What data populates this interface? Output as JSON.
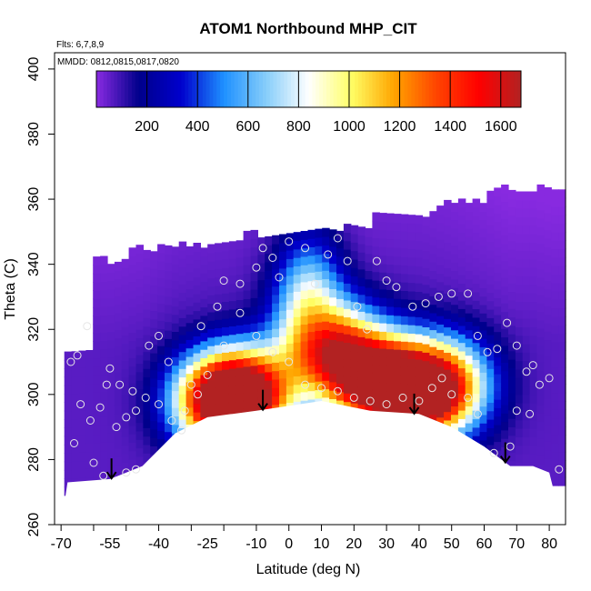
{
  "chart_data": {
    "type": "heatmap",
    "title": "ATOM1 Northbound MHP_CIT",
    "flights_note": "Flts: 6,7,8,9",
    "dates_note": "MMDD: 0812,0815,0817,0820",
    "xlabel": "Latitude (deg N)",
    "ylabel": "Theta (C)",
    "xlim": [
      -72,
      85
    ],
    "ylim": [
      260,
      405
    ],
    "x_ticks": [
      -70,
      -60,
      -50,
      -40,
      -30,
      -20,
      -10,
      0,
      10,
      20,
      30,
      40,
      50,
      60,
      70,
      80
    ],
    "x_tick_labels": [
      "-70",
      "-55",
      "-40",
      "-25",
      "-10",
      "0",
      "10",
      "20",
      "30",
      "40",
      "50",
      "60",
      "70",
      "80"
    ],
    "x_tick_label_values": [
      -70,
      -55,
      -40,
      -25,
      -10,
      0,
      10,
      20,
      30,
      40,
      50,
      60,
      70,
      80
    ],
    "y_ticks": [
      260,
      280,
      300,
      320,
      340,
      360,
      380,
      400
    ],
    "y_tick_labels": [
      "260",
      "280",
      "300",
      "320",
      "340",
      "360",
      "380",
      "400"
    ],
    "colorbar": {
      "range": [
        0,
        1680
      ],
      "ticks": [
        200,
        400,
        600,
        800,
        1000,
        1200,
        1400,
        1600
      ],
      "tick_labels": [
        "200",
        "400",
        "600",
        "800",
        "1000",
        "1200",
        "1400",
        "1600"
      ],
      "colors": [
        "#8a2be2",
        "#00008b",
        "#0000cd",
        "#1e90ff",
        "#87cefa",
        "#ffffff",
        "#ffff66",
        "#ffa500",
        "#ff4500",
        "#ff0000",
        "#b22222"
      ]
    },
    "surface_boundary": [
      [
        -68,
        273
      ],
      [
        -55,
        274
      ],
      [
        -45,
        278
      ],
      [
        -35,
        288
      ],
      [
        -25,
        293
      ],
      [
        -10,
        295
      ],
      [
        10,
        298
      ],
      [
        25,
        295
      ],
      [
        40,
        294
      ],
      [
        50,
        290
      ],
      [
        60,
        284
      ],
      [
        68,
        278
      ],
      [
        75,
        278
      ],
      [
        80,
        276
      ]
    ],
    "arrows_latitude": [
      -54.5,
      -8,
      38.5,
      66.5
    ],
    "observation_points": [
      [
        -67,
        310
      ],
      [
        -65,
        312
      ],
      [
        -62,
        321
      ],
      [
        -55,
        308
      ],
      [
        -56,
        303
      ],
      [
        -53,
        290
      ],
      [
        -50,
        293
      ],
      [
        -47,
        295
      ],
      [
        -50,
        276
      ],
      [
        -47,
        277
      ],
      [
        -43,
        315
      ],
      [
        -40,
        318
      ],
      [
        -37,
        310
      ],
      [
        -33,
        289
      ],
      [
        -30,
        303
      ],
      [
        -27,
        321
      ],
      [
        -22,
        327
      ],
      [
        -20,
        335
      ],
      [
        -15,
        334
      ],
      [
        -10,
        339
      ],
      [
        -8,
        345
      ],
      [
        -5,
        342
      ],
      [
        -3,
        336
      ],
      [
        0,
        347
      ],
      [
        5,
        345
      ],
      [
        8,
        334
      ],
      [
        12,
        343
      ],
      [
        15,
        348
      ],
      [
        18,
        341
      ],
      [
        21,
        327
      ],
      [
        24,
        320
      ],
      [
        27,
        341
      ],
      [
        30,
        335
      ],
      [
        33,
        333
      ],
      [
        38,
        327
      ],
      [
        42,
        328
      ],
      [
        46,
        330
      ],
      [
        50,
        331
      ],
      [
        55,
        331
      ],
      [
        58,
        318
      ],
      [
        61,
        313
      ],
      [
        64,
        314
      ],
      [
        67,
        322
      ],
      [
        70,
        315
      ],
      [
        73,
        307
      ],
      [
        75,
        309
      ],
      [
        77,
        303
      ],
      [
        80,
        305
      ],
      [
        83,
        277
      ],
      [
        74,
        294
      ],
      [
        70,
        295
      ],
      [
        68,
        284
      ],
      [
        63,
        282
      ],
      [
        58,
        294
      ],
      [
        55,
        299
      ],
      [
        50,
        300
      ],
      [
        47,
        305
      ],
      [
        44,
        302
      ],
      [
        40,
        298
      ],
      [
        35,
        299
      ],
      [
        30,
        297
      ],
      [
        25,
        298
      ],
      [
        20,
        299
      ],
      [
        15,
        301
      ],
      [
        10,
        302
      ],
      [
        5,
        303
      ],
      [
        0,
        310
      ],
      [
        -5,
        313
      ],
      [
        -10,
        318
      ],
      [
        -15,
        325
      ],
      [
        -20,
        315
      ],
      [
        -25,
        306
      ],
      [
        -28,
        300
      ],
      [
        -32,
        295
      ],
      [
        -36,
        292
      ],
      [
        -40,
        297
      ],
      [
        -44,
        299
      ],
      [
        -48,
        301
      ],
      [
        -52,
        303
      ],
      [
        -58,
        296
      ],
      [
        -61,
        292
      ],
      [
        -64,
        297
      ],
      [
        -66,
        285
      ],
      [
        -60,
        279
      ],
      [
        -57,
        275
      ]
    ],
    "field_peaks": [
      {
        "lat": -22,
        "theta": 298,
        "value": 1500
      },
      {
        "lat": -12,
        "theta": 300,
        "value": 1450
      },
      {
        "lat": 12,
        "theta": 315,
        "value": 1250
      },
      {
        "lat": 25,
        "theta": 305,
        "value": 1500
      },
      {
        "lat": 38,
        "theta": 300,
        "value": 1450
      },
      {
        "lat": 48,
        "theta": 303,
        "value": 1150
      }
    ]
  }
}
